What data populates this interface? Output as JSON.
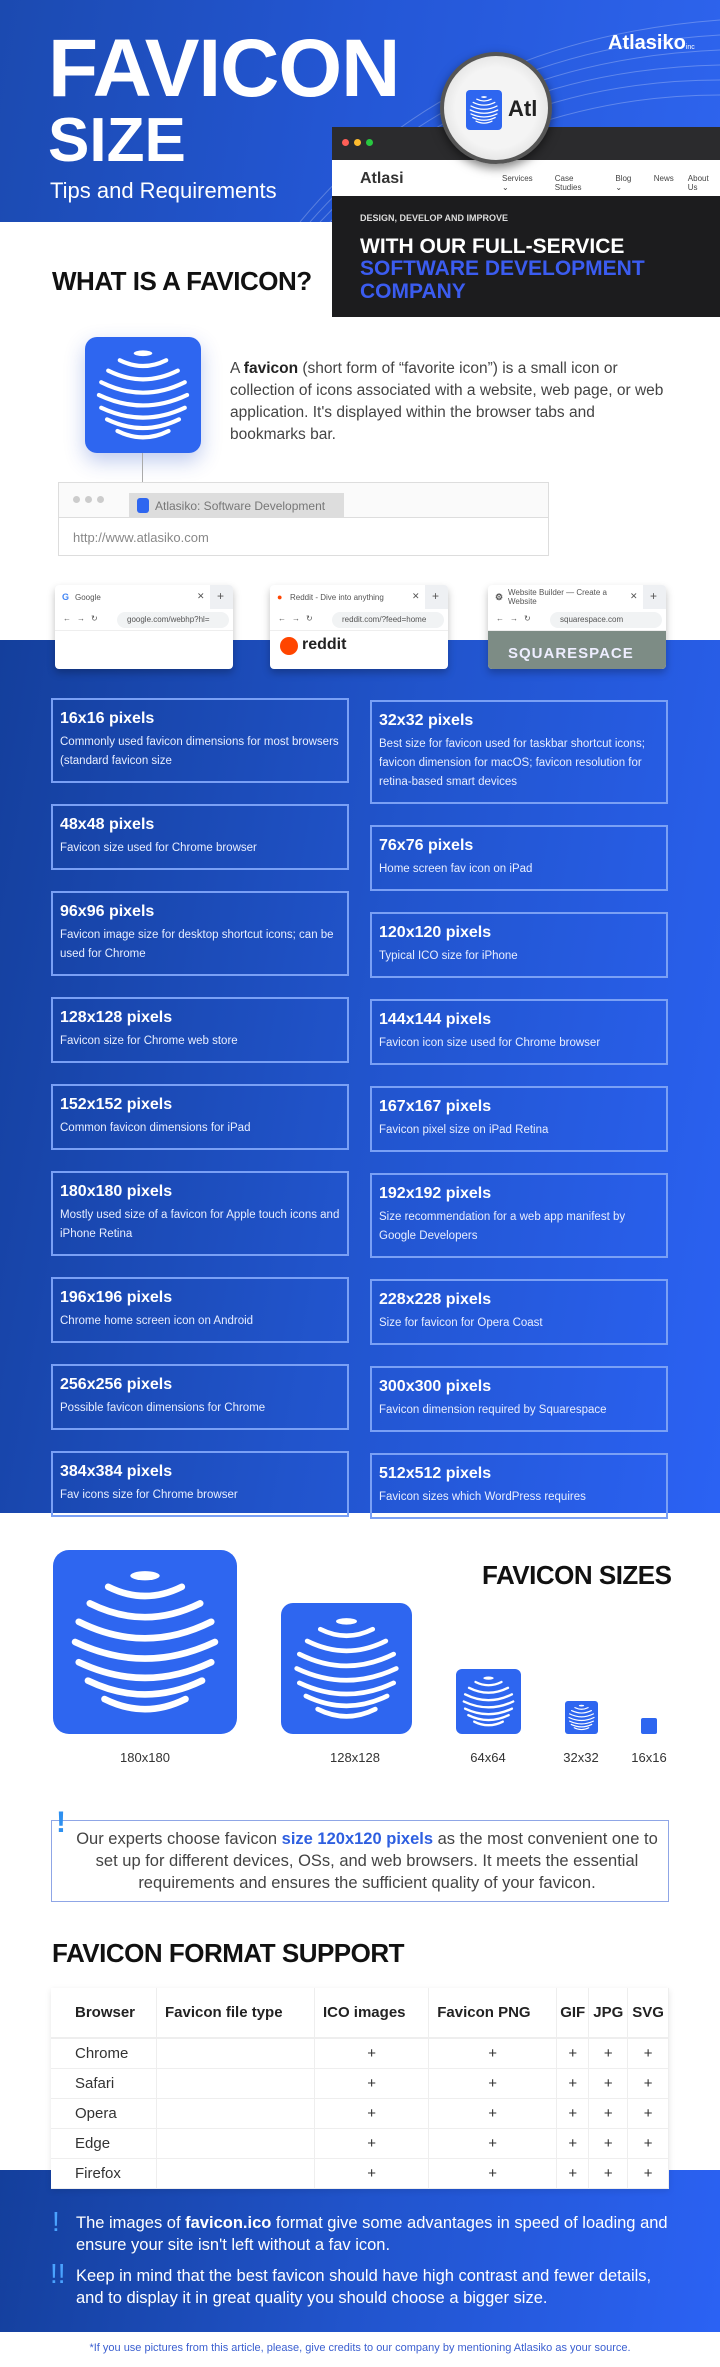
{
  "header": {
    "title_line1": "FAVICON",
    "title_line2": "SIZE",
    "subtitle": "Tips and Requirements",
    "logo": "Atlasiko",
    "logo_suffix": "inc"
  },
  "hero_screenshot": {
    "brand": "Atlasi",
    "magnified_text": "Atl",
    "nav": [
      "Services ⌄",
      "Case Studies",
      "Blog ⌄",
      "News",
      "About Us"
    ],
    "kicker": "DESIGN, DEVELOP AND IMPROVE",
    "headline": "WITH OUR FULL-SERVICE",
    "headline_accent": "SOFTWARE DEVELOPMENT COMPANY"
  },
  "what_is": {
    "title": "WHAT IS A FAVICON?",
    "desc_prefix": "A ",
    "desc_bold": "favicon",
    "desc_rest": " (short form of “favorite icon”) is a small icon or collection of icons associated with a website, web page, or web application. It's displayed within the browser tabs and bookmarks bar.",
    "mock_tab": "Atlasiko: Software Development",
    "mock_url": "http://www.atlasiko.com"
  },
  "browser_examples": [
    {
      "favicon": "G",
      "tab": "Google",
      "url": "google.com/webhp?hl=",
      "body": ""
    },
    {
      "favicon": "●",
      "tab": "Reddit - Dive into anything",
      "url": "reddit.com/?feed=home",
      "body": "reddit"
    },
    {
      "favicon": "⚙",
      "tab": "Website Builder — Create a Website",
      "url": "squarespace.com",
      "body": "SQUARESPACE"
    }
  ],
  "size_cards_left": [
    {
      "size": "16x16 pixels",
      "desc": "Commonly used favicon dimensions for most browsers (standard favicon size"
    },
    {
      "size": "48x48 pixels",
      "desc": "Favicon size used for Chrome browser"
    },
    {
      "size": "96x96 pixels",
      "desc": "Favicon image size for desktop shortcut icons; can be used for Chrome"
    },
    {
      "size": "128x128 pixels",
      "desc": "Favicon size for Chrome web store"
    },
    {
      "size": "152x152 pixels",
      "desc": "Common favicon dimensions for iPad"
    },
    {
      "size": "180x180 pixels",
      "desc": "Mostly used size of a favicon for Apple touch icons and iPhone Retina"
    },
    {
      "size": "196x196 pixels",
      "desc": "Chrome home screen icon on Android"
    },
    {
      "size": "256x256 pixels",
      "desc": "Possible favicon dimensions for Chrome"
    },
    {
      "size": "384x384 pixels",
      "desc": "Fav icons size for Chrome browser"
    }
  ],
  "size_cards_right": [
    {
      "size": "32x32 pixels",
      "desc": "Best size for favicon used for taskbar shortcut icons; favicon dimension for macOS; favicon resolution for retina-based smart devices"
    },
    {
      "size": "76x76 pixels",
      "desc": "Home screen fav icon on iPad"
    },
    {
      "size": "120x120 pixels",
      "desc": "Typical ICO size for iPhone"
    },
    {
      "size": "144x144 pixels",
      "desc": "Favicon icon size used for Chrome browser"
    },
    {
      "size": "167x167 pixels",
      "desc": "Favicon pixel size on iPad Retina"
    },
    {
      "size": "192x192 pixels",
      "desc": "Size recommendation for a web app manifest by Google Developers"
    },
    {
      "size": "228x228 pixels",
      "desc": "Size for favicon for Opera Coast"
    },
    {
      "size": "300x300 pixels",
      "desc": "Favicon dimension required by Squarespace"
    },
    {
      "size": "512x512 pixels",
      "desc": "Favicon sizes which WordPress requires"
    }
  ],
  "favicon_sizes": {
    "title": "FAVICON SIZES",
    "labels": [
      "180x180",
      "128x128",
      "64x64",
      "32x32",
      "16x16"
    ]
  },
  "recommendation": {
    "prefix": "Our experts choose favicon ",
    "highlight": "size 120x120 pixels",
    "suffix": " as the most convenient one to set up for different devices, OSs, and web browsers. It meets the essential requirements and ensures the sufficient quality of your favicon."
  },
  "format_support": {
    "title": "FAVICON FORMAT SUPPORT",
    "headers": [
      "Browser",
      "Favicon file type",
      "ICO images",
      "Favicon PNG",
      "GIF",
      "JPG",
      "SVG"
    ],
    "rows": [
      [
        "Chrome",
        "",
        "+",
        "+",
        "+",
        "+",
        "+"
      ],
      [
        "Safari",
        "",
        "+",
        "+",
        "+",
        "+",
        "+"
      ],
      [
        "Opera",
        "",
        "+",
        "+",
        "+",
        "+",
        "+"
      ],
      [
        "Edge",
        "",
        "+",
        "+",
        "+",
        "+",
        "+"
      ],
      [
        "Firefox",
        "",
        "+",
        "+",
        "+",
        "+",
        "+"
      ]
    ]
  },
  "notes": {
    "note1_prefix": "The images of ",
    "note1_bold": "favicon.ico",
    "note1_suffix": " format give some advantages in speed of loading and ensure your site isn't left without a fav icon.",
    "note2": "Keep in mind that the best favicon should have high contrast and fewer details, and to display it in great quality you should choose a bigger size.",
    "mark1": "!",
    "mark2": "!!"
  },
  "footer": "*If you use pictures from this article, please, give credits to our company by mentioning Atlasiko as your source.",
  "colors": {
    "brand_blue": "#2e66f0",
    "band_dark": "#143f9c",
    "band_light": "#2b62f4",
    "accent_text": "#2e5fe0"
  }
}
